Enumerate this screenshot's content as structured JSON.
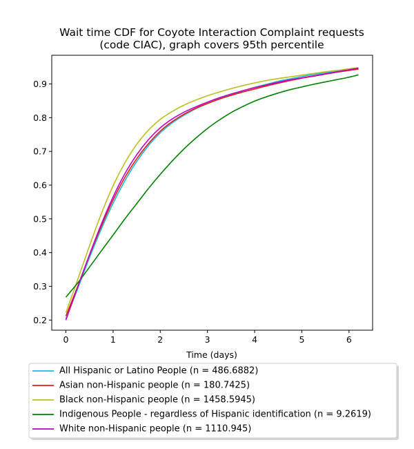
{
  "chart_data": {
    "type": "line",
    "title_lines": [
      "Wait time CDF for Coyote Interaction Complaint  requests",
      "(code CIAC), graph covers 95th percentile"
    ],
    "xlabel": "Time (days)",
    "ylabel": "",
    "xlim": [
      -0.3,
      6.5
    ],
    "ylim": [
      0.17,
      0.985
    ],
    "x_ticks": [
      0,
      1,
      2,
      3,
      4,
      5,
      6
    ],
    "y_ticks": [
      0.2,
      0.3,
      0.4,
      0.5,
      0.6,
      0.7,
      0.8,
      0.9
    ],
    "grid": false,
    "legend_position": "bottom-outside",
    "x": [
      0,
      0.25,
      0.5,
      0.75,
      1.0,
      1.25,
      1.5,
      1.75,
      2.0,
      2.25,
      2.5,
      2.75,
      3.0,
      3.25,
      3.5,
      3.75,
      4.0,
      4.25,
      4.5,
      4.75,
      5.0,
      5.25,
      5.5,
      5.75,
      6.0,
      6.2
    ],
    "series": [
      {
        "name": "All Hispanic or Latino People (n = 486.6882)",
        "color": "#17becf",
        "values": [
          0.205,
          0.293,
          0.385,
          0.47,
          0.546,
          0.613,
          0.67,
          0.717,
          0.755,
          0.784,
          0.807,
          0.826,
          0.842,
          0.856,
          0.868,
          0.879,
          0.89,
          0.899,
          0.908,
          0.915,
          0.922,
          0.928,
          0.933,
          0.938,
          0.943,
          0.946
        ]
      },
      {
        "name": "Asian non-Hispanic people (n = 180.7425)",
        "color": "#e41a1c",
        "values": [
          0.212,
          0.3,
          0.392,
          0.478,
          0.556,
          0.623,
          0.678,
          0.723,
          0.76,
          0.788,
          0.81,
          0.828,
          0.842,
          0.855,
          0.866,
          0.876,
          0.885,
          0.894,
          0.902,
          0.91,
          0.917,
          0.923,
          0.929,
          0.935,
          0.94,
          0.944
        ]
      },
      {
        "name": "Black non-Hispanic people (n = 1458.5945)",
        "color": "#bcbd22",
        "values": [
          0.222,
          0.32,
          0.42,
          0.515,
          0.598,
          0.666,
          0.721,
          0.763,
          0.795,
          0.818,
          0.837,
          0.852,
          0.865,
          0.876,
          0.886,
          0.895,
          0.903,
          0.91,
          0.916,
          0.921,
          0.926,
          0.931,
          0.936,
          0.94,
          0.945,
          0.948
        ]
      },
      {
        "name": "Indigenous People - regardless of Hispanic identification (n = 9.2619)",
        "color": "#008000",
        "values": [
          0.268,
          0.31,
          0.357,
          0.405,
          0.452,
          0.5,
          0.545,
          0.59,
          0.632,
          0.671,
          0.707,
          0.739,
          0.768,
          0.793,
          0.815,
          0.833,
          0.849,
          0.862,
          0.873,
          0.883,
          0.891,
          0.899,
          0.906,
          0.913,
          0.92,
          0.927
        ]
      },
      {
        "name": "White non-Hispanic people (n = 1110.945)",
        "color": "#bf00bf",
        "values": [
          0.2,
          0.298,
          0.394,
          0.484,
          0.565,
          0.634,
          0.69,
          0.735,
          0.77,
          0.796,
          0.816,
          0.832,
          0.846,
          0.859,
          0.87,
          0.88,
          0.889,
          0.897,
          0.905,
          0.912,
          0.918,
          0.924,
          0.93,
          0.936,
          0.942,
          0.947
        ]
      }
    ]
  }
}
